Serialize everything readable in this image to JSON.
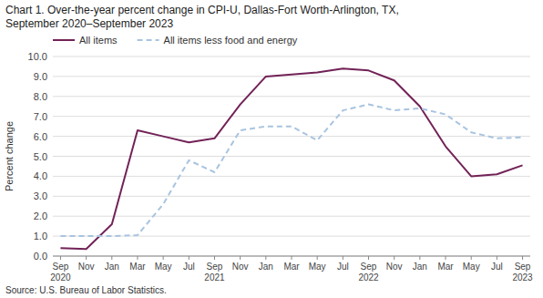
{
  "chart_data": {
    "type": "line",
    "title": "Chart 1. Over-the-year percent change in CPI-U, Dallas-Fort Worth-Arlington, TX,",
    "subtitle": "September 2020–September 2023",
    "y_label": "Percent change",
    "source": "Source: U.S. Bureau of Labor Statistics.",
    "categories": [
      "Sep\n2020",
      "Nov",
      "Jan",
      "Mar",
      "May",
      "Jul",
      "Sep\n2021",
      "Nov",
      "Jan",
      "Mar",
      "May",
      "Jul",
      "Sep\n2022",
      "Nov",
      "Jan",
      "Mar",
      "May",
      "Jul",
      "Sep\n2023"
    ],
    "series": [
      {
        "name": "All items",
        "color": "#722257",
        "line_style": "solid",
        "values": [
          0.4,
          0.35,
          1.6,
          6.3,
          6.0,
          5.7,
          5.9,
          7.6,
          9.0,
          9.1,
          9.2,
          9.4,
          9.3,
          8.8,
          7.5,
          5.5,
          4.0,
          4.1,
          4.55
        ]
      },
      {
        "name": "All items less food and energy",
        "color": "#a8c4e0",
        "line_style": "dashed",
        "values": [
          1.0,
          1.0,
          1.0,
          1.05,
          2.6,
          4.8,
          4.2,
          6.3,
          6.5,
          6.5,
          5.8,
          7.3,
          7.6,
          7.3,
          7.4,
          7.1,
          6.2,
          5.9,
          5.95
        ]
      }
    ],
    "ylim": [
      0.0,
      10.0
    ],
    "yticks": [
      {
        "value": 0,
        "label": "0.0"
      },
      {
        "value": 1,
        "label": "1.0"
      },
      {
        "value": 2,
        "label": "2.0"
      },
      {
        "value": 3,
        "label": "3.0"
      },
      {
        "value": 4,
        "label": "4.0"
      },
      {
        "value": 5,
        "label": "5.0"
      },
      {
        "value": 6,
        "label": "6.0"
      },
      {
        "value": 7,
        "label": "7.0"
      },
      {
        "value": 8,
        "label": "8.0"
      },
      {
        "value": 9,
        "label": "9.0"
      },
      {
        "value": 10,
        "label": "10.0"
      }
    ],
    "grid": true,
    "legend": "top"
  }
}
